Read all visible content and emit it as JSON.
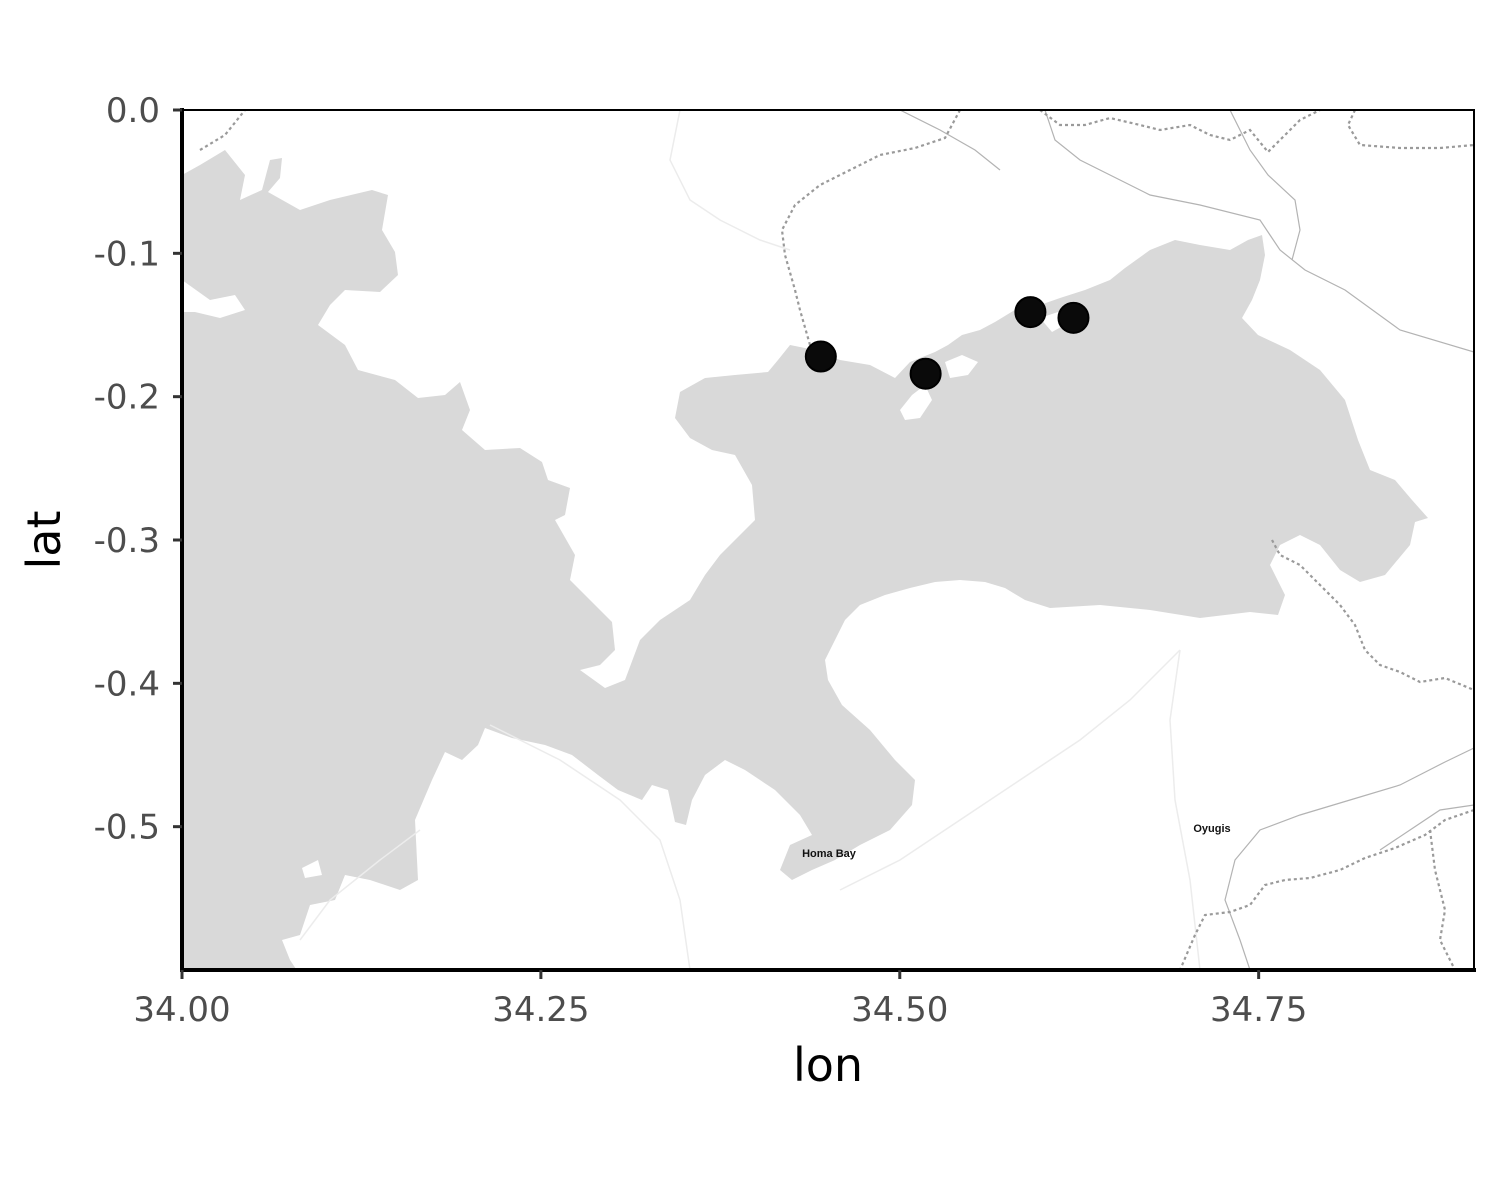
{
  "chart_data": {
    "type": "scatter",
    "xlabel": "lon",
    "ylabel": "lat",
    "xlim": [
      34.0,
      34.9
    ],
    "ylim": [
      -0.6,
      0.0
    ],
    "x_ticks": [
      "34.00",
      "34.25",
      "34.50",
      "34.75"
    ],
    "x_tick_values": [
      34.0,
      34.25,
      34.5,
      34.75
    ],
    "y_ticks": [
      "0.0",
      "-0.1",
      "-0.2",
      "-0.3",
      "-0.4",
      "-0.5"
    ],
    "y_tick_values": [
      0.0,
      -0.1,
      -0.2,
      -0.3,
      -0.4,
      -0.5
    ],
    "points": [
      {
        "lon": 34.445,
        "lat": -0.172
      },
      {
        "lon": 34.518,
        "lat": -0.184
      },
      {
        "lon": 34.591,
        "lat": -0.141
      },
      {
        "lon": 34.621,
        "lat": -0.145
      }
    ],
    "point_color": "#0a0a0a",
    "basemap": {
      "style": "grayscale toner-lite",
      "water_color": "#d9d9d9",
      "land_color": "#ffffff",
      "place_labels": [
        {
          "name": "Homa Bay",
          "lon": 34.457,
          "lat": -0.518
        },
        {
          "name": "Oyugis",
          "lon": 34.721,
          "lat": -0.501
        }
      ]
    }
  }
}
